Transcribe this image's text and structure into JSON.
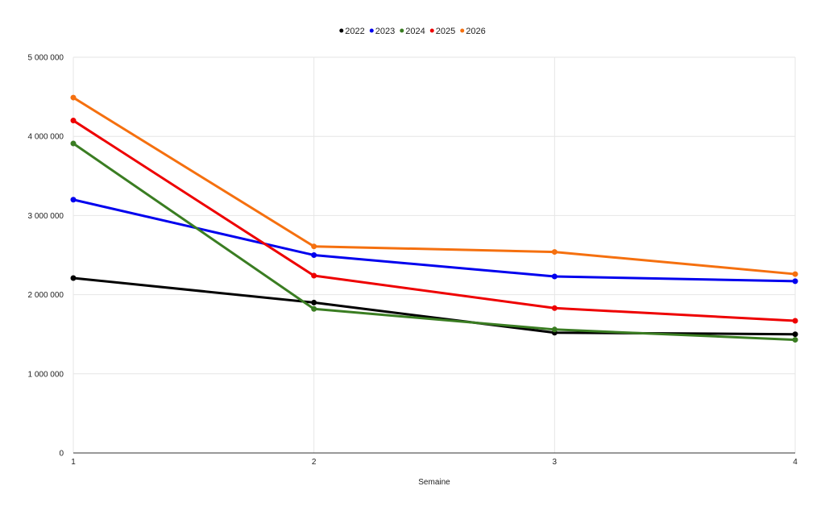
{
  "chart_data": {
    "type": "line",
    "title": "",
    "xlabel": "Semaine",
    "ylabel": "",
    "x": [
      1,
      2,
      3,
      4
    ],
    "x_tick_labels": [
      "1",
      "2",
      "3",
      "4"
    ],
    "ylim": [
      0,
      5000000
    ],
    "y_ticks": [
      0,
      1000000,
      2000000,
      3000000,
      4000000,
      5000000
    ],
    "y_tick_labels": [
      "0",
      "1 000 000",
      "2 000 000",
      "3 000 000",
      "4 000 000",
      "5 000 000"
    ],
    "grid": true,
    "legend_position": "top",
    "series": [
      {
        "name": "2022",
        "color": "#000000",
        "values": [
          2210000,
          1900000,
          1520000,
          1500000
        ]
      },
      {
        "name": "2023",
        "color": "#0000ee",
        "values": [
          3200000,
          2500000,
          2230000,
          2170000
        ]
      },
      {
        "name": "2024",
        "color": "#3a7d22",
        "values": [
          3910000,
          1820000,
          1560000,
          1430000
        ]
      },
      {
        "name": "2025",
        "color": "#ee0000",
        "values": [
          4200000,
          2240000,
          1830000,
          1670000
        ]
      },
      {
        "name": "2026",
        "color": "#f5700f",
        "values": [
          4490000,
          2610000,
          2540000,
          2260000
        ]
      }
    ]
  }
}
